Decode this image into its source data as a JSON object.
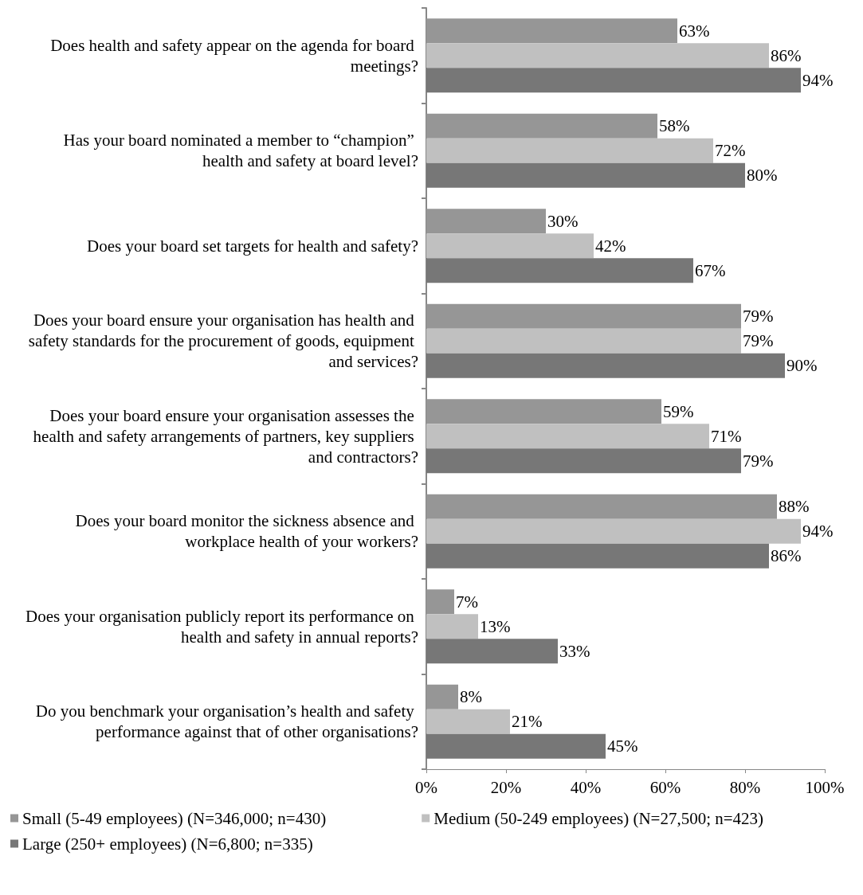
{
  "chart_data": {
    "type": "bar",
    "orientation": "horizontal",
    "categories": [
      "Does health and safety appear on the agenda for board meetings?",
      "Has your board nominated a member to “champion” health and safety at board level?",
      "Does your board set targets for health and safety?",
      "Does your board ensure your organisation has health and safety standards for the procurement of goods, equipment and services?",
      "Does your board ensure your organisation assesses the health and safety arrangements of partners, key suppliers and contractors?",
      "Does your board monitor the sickness absence and workplace health of your workers?",
      "Does your organisation publicly report its performance on health and safety in annual reports?",
      "Do you benchmark your organisation’s health and safety performance against that of other organisations?"
    ],
    "series": [
      {
        "name": "Small (5-49 employees) (N=346,000; n=430)",
        "color": "#969696",
        "values": [
          63,
          58,
          30,
          79,
          59,
          88,
          7,
          8
        ],
        "value_labels": [
          "63%",
          "58%",
          "30%",
          "79%",
          "59%",
          "88%",
          "7%",
          "8%"
        ]
      },
      {
        "name": "Medium (50-249 employees) (N=27,500; n=423)",
        "color": "#c0c0c0",
        "values": [
          86,
          72,
          42,
          79,
          71,
          94,
          13,
          21
        ],
        "value_labels": [
          "86%",
          "72%",
          "42%",
          "79%",
          "71%",
          "94%",
          "13%",
          "21%"
        ]
      },
      {
        "name": "Large (250+ employees) (N=6,800; n=335)",
        "color": "#777777",
        "values": [
          94,
          80,
          67,
          90,
          79,
          86,
          33,
          45
        ],
        "value_labels": [
          "94%",
          "80%",
          "67%",
          "90%",
          "79%",
          "86%",
          "33%",
          "45%"
        ]
      }
    ],
    "xlim": [
      0,
      100
    ],
    "xticks": [
      {
        "value": 0,
        "label": "0%"
      },
      {
        "value": 20,
        "label": "20%"
      },
      {
        "value": 40,
        "label": "40%"
      },
      {
        "value": 60,
        "label": "60%"
      },
      {
        "value": 80,
        "label": "80%"
      },
      {
        "value": 100,
        "label": "100%"
      }
    ],
    "grid": false,
    "legend": "bottom left"
  }
}
